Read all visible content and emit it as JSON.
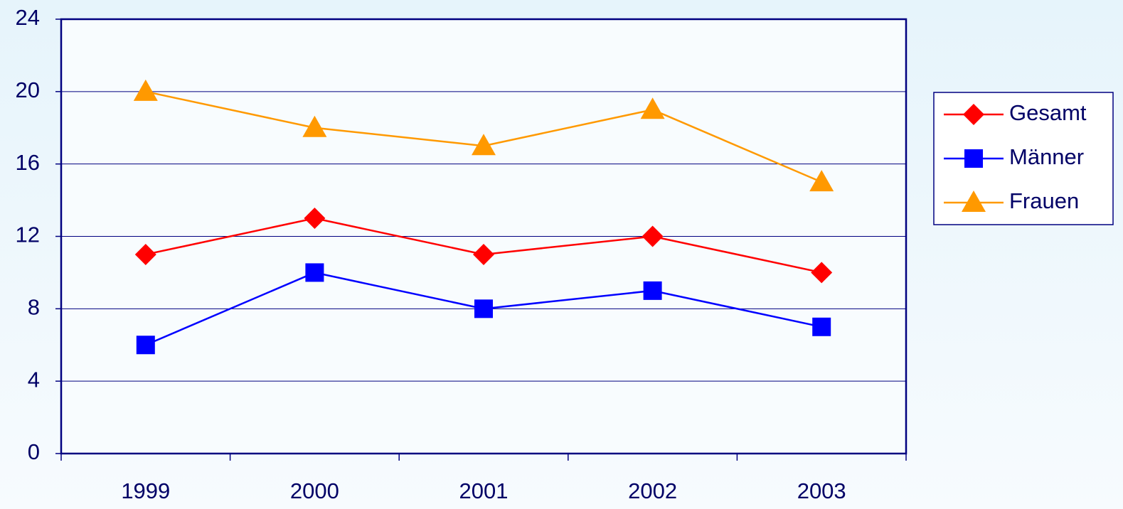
{
  "chart_data": {
    "type": "line",
    "categories": [
      "1999",
      "2000",
      "2001",
      "2002",
      "2003"
    ],
    "series": [
      {
        "name": "Gesamt",
        "color": "#ff0000",
        "marker": "diamond",
        "values": [
          11,
          13,
          11,
          12,
          10
        ]
      },
      {
        "name": "Männer",
        "color": "#0000ff",
        "marker": "square",
        "values": [
          6,
          10,
          8,
          9,
          7
        ]
      },
      {
        "name": "Frauen",
        "color": "#ff9900",
        "marker": "triangle",
        "values": [
          20,
          18,
          17,
          19,
          15
        ]
      }
    ],
    "ylim": [
      0,
      24
    ],
    "yticks": [
      0,
      4,
      8,
      12,
      16,
      20,
      24
    ],
    "grid": true,
    "legend": "right"
  }
}
